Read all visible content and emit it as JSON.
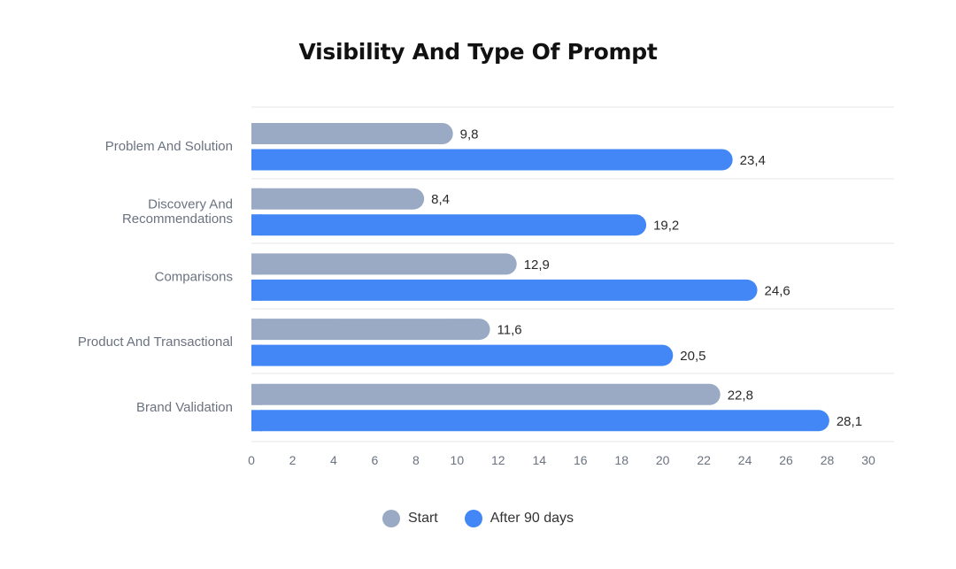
{
  "chart_data": {
    "type": "bar",
    "orientation": "horizontal",
    "title": "Visibility And Type Of Prompt",
    "categories": [
      [
        "Problem And Solution"
      ],
      [
        "Discovery And",
        "Recommendations"
      ],
      [
        "Comparisons"
      ],
      [
        "Product And Transactional"
      ],
      [
        "Brand Validation"
      ]
    ],
    "series": [
      {
        "name": "Start",
        "color": "#9aaac4",
        "values": [
          9.8,
          8.4,
          12.9,
          11.6,
          22.8
        ],
        "labels": [
          "9,8",
          "8,4",
          "12,9",
          "11,6",
          "22,8"
        ]
      },
      {
        "name": "After 90 days",
        "color": "#4287f5",
        "values": [
          23.4,
          19.2,
          24.6,
          20.5,
          28.1
        ],
        "labels": [
          "23,4",
          "19,2",
          "24,6",
          "20,5",
          "28,1"
        ]
      }
    ],
    "xlim": [
      0,
      30
    ],
    "xticks": [
      0,
      2,
      4,
      6,
      8,
      10,
      12,
      14,
      16,
      18,
      20,
      22,
      24,
      26,
      28,
      30
    ],
    "xtick_labels": [
      "0",
      "2",
      "4",
      "6",
      "8",
      "10",
      "12",
      "14",
      "16",
      "18",
      "20",
      "22",
      "24",
      "26",
      "28",
      "30"
    ],
    "grid": "horizontal separators between categories",
    "legend": "bottom-center"
  }
}
